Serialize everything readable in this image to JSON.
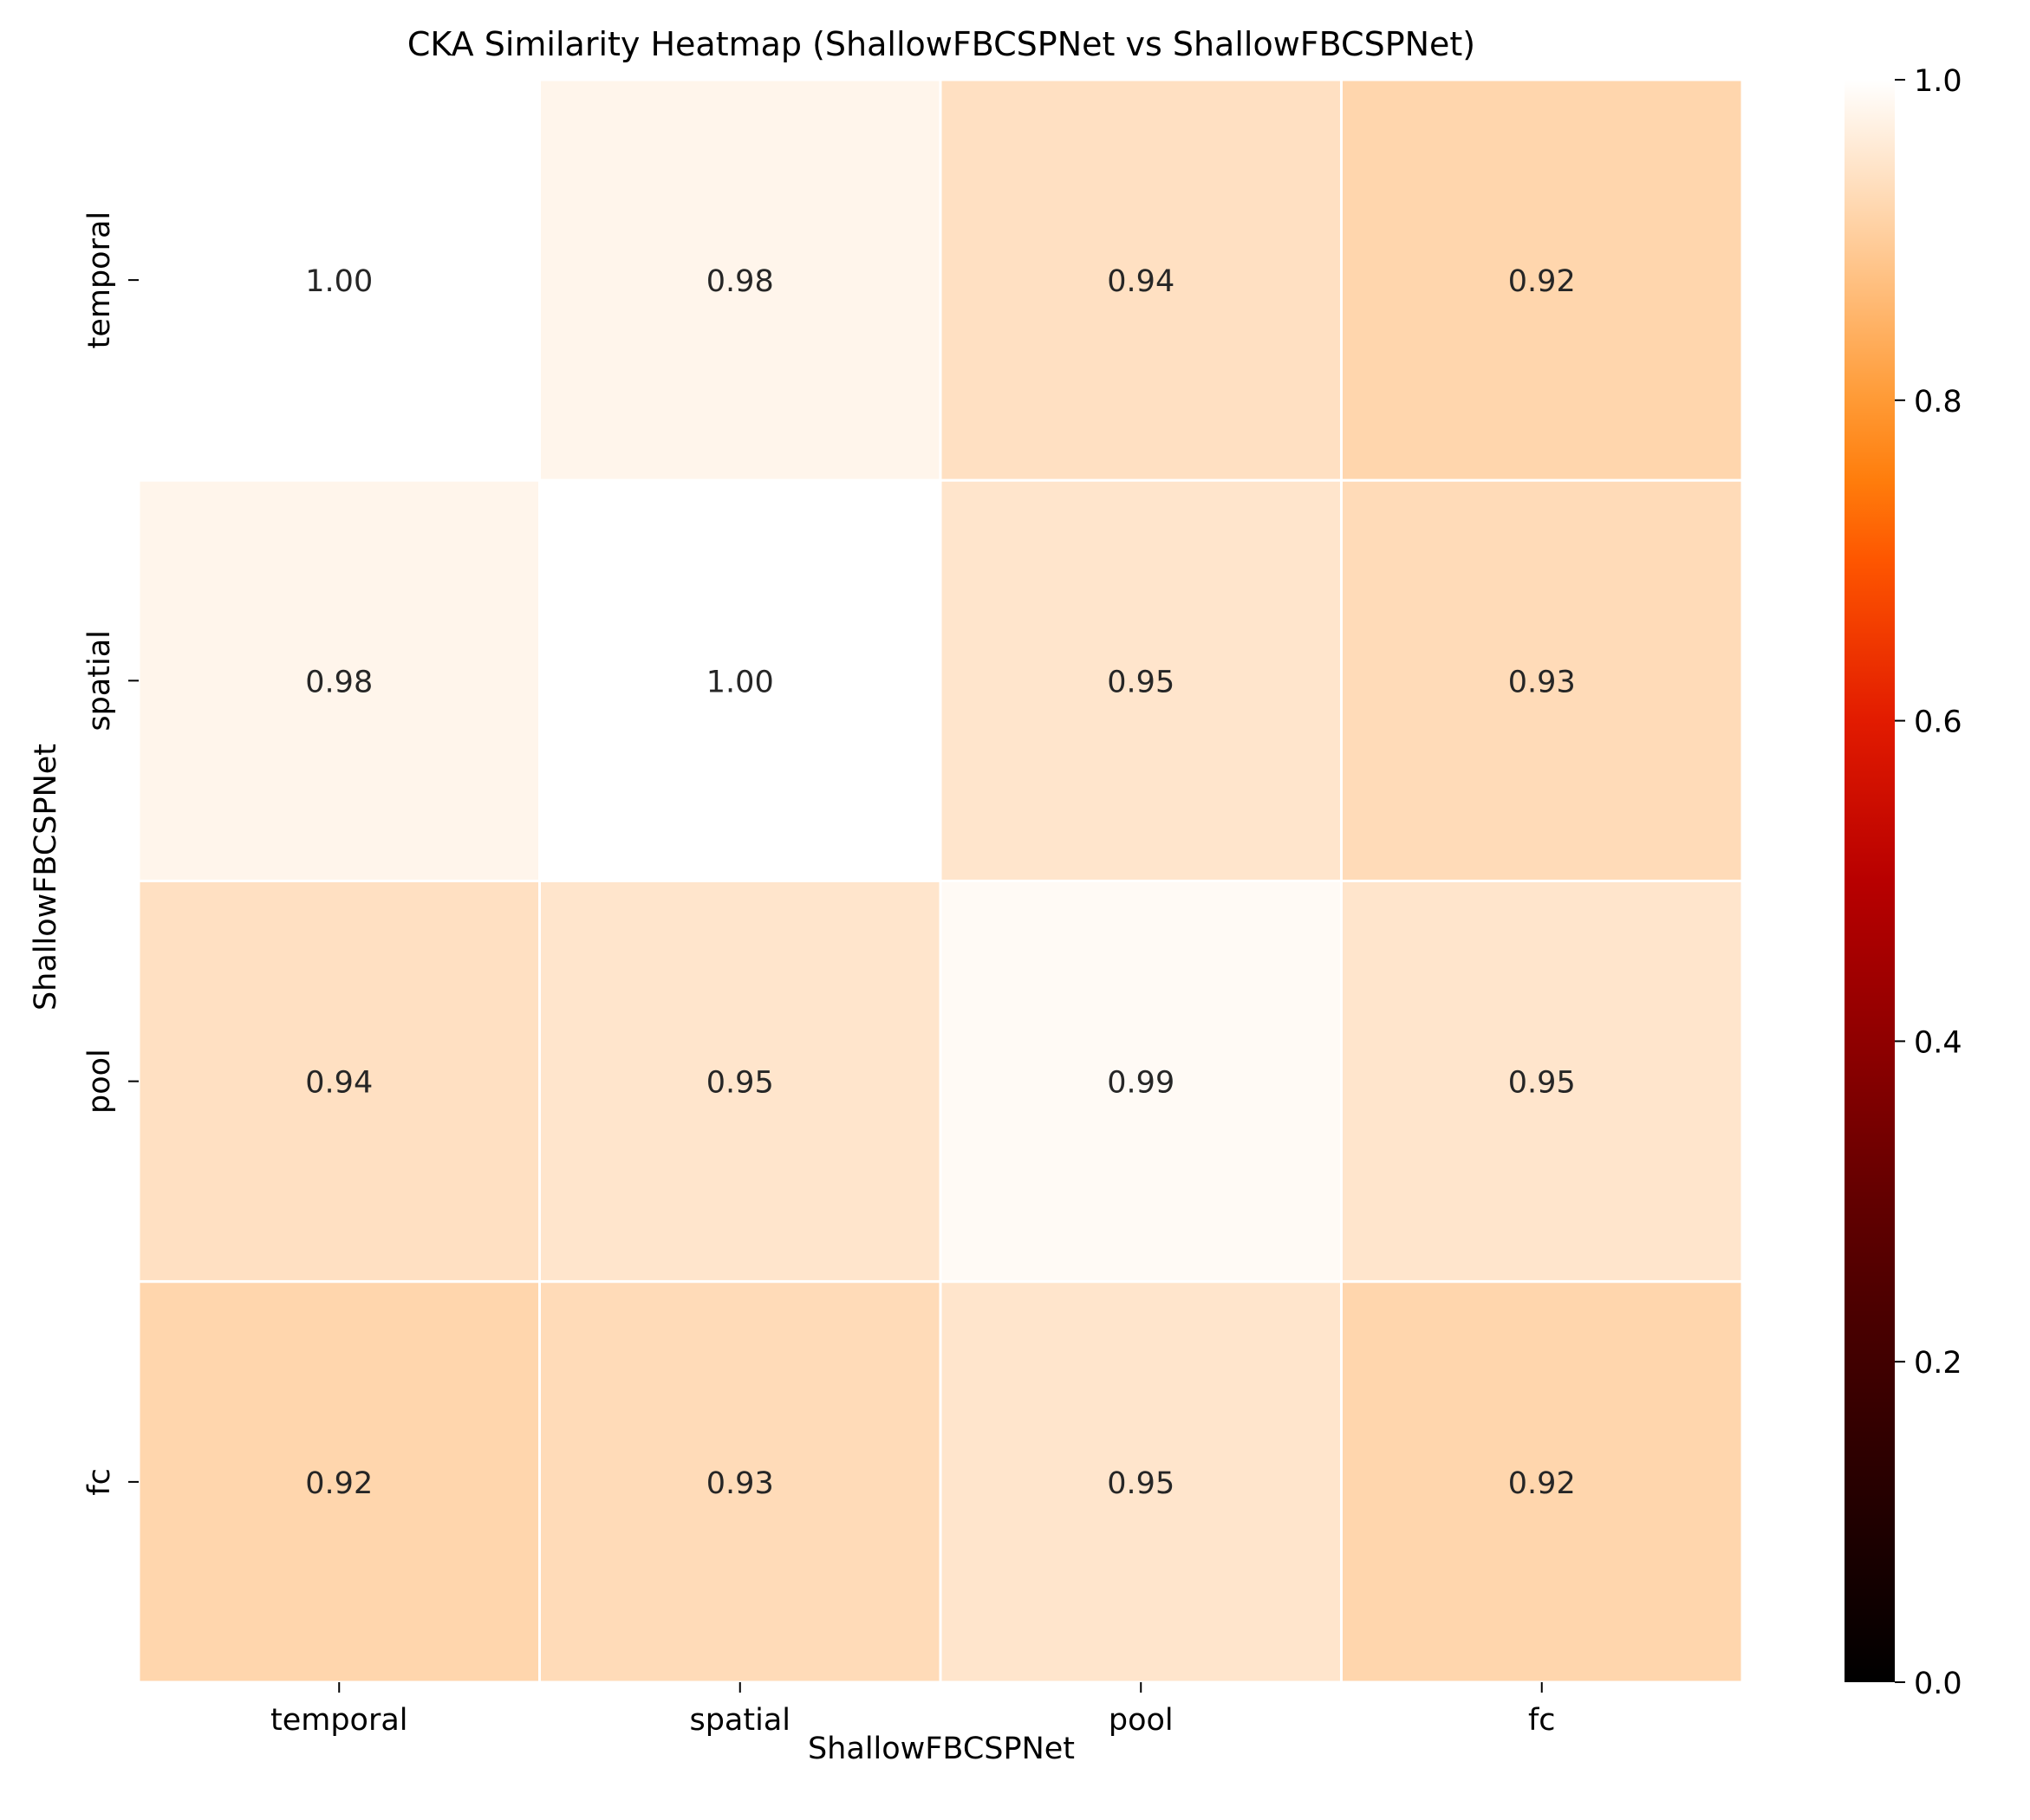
{
  "chart_data": {
    "type": "heatmap",
    "title": "CKA Similarity Heatmap (ShallowFBCSPNet vs ShallowFBCSPNet)",
    "xlabel": "ShallowFBCSPNet",
    "ylabel": "ShallowFBCSPNet",
    "x_categories": [
      "temporal",
      "spatial",
      "pool",
      "fc"
    ],
    "y_categories": [
      "temporal",
      "spatial",
      "pool",
      "fc"
    ],
    "values": [
      [
        1.0,
        0.98,
        0.94,
        0.92
      ],
      [
        0.98,
        1.0,
        0.95,
        0.93
      ],
      [
        0.94,
        0.95,
        0.99,
        0.95
      ],
      [
        0.92,
        0.93,
        0.95,
        0.92
      ]
    ],
    "annotations": [
      [
        "1.00",
        "0.98",
        "0.94",
        "0.92"
      ],
      [
        "0.98",
        "1.00",
        "0.95",
        "0.93"
      ],
      [
        "0.94",
        "0.95",
        "0.99",
        "0.95"
      ],
      [
        "0.92",
        "0.93",
        "0.95",
        "0.92"
      ]
    ],
    "colormap": "gist_heat",
    "vmin": 0.0,
    "vmax": 1.0,
    "colorbar_ticks": [
      "0.0",
      "0.2",
      "0.4",
      "0.6",
      "0.8",
      "1.0"
    ],
    "cell_border_color": "#ffffff",
    "text_color": "#262626"
  }
}
